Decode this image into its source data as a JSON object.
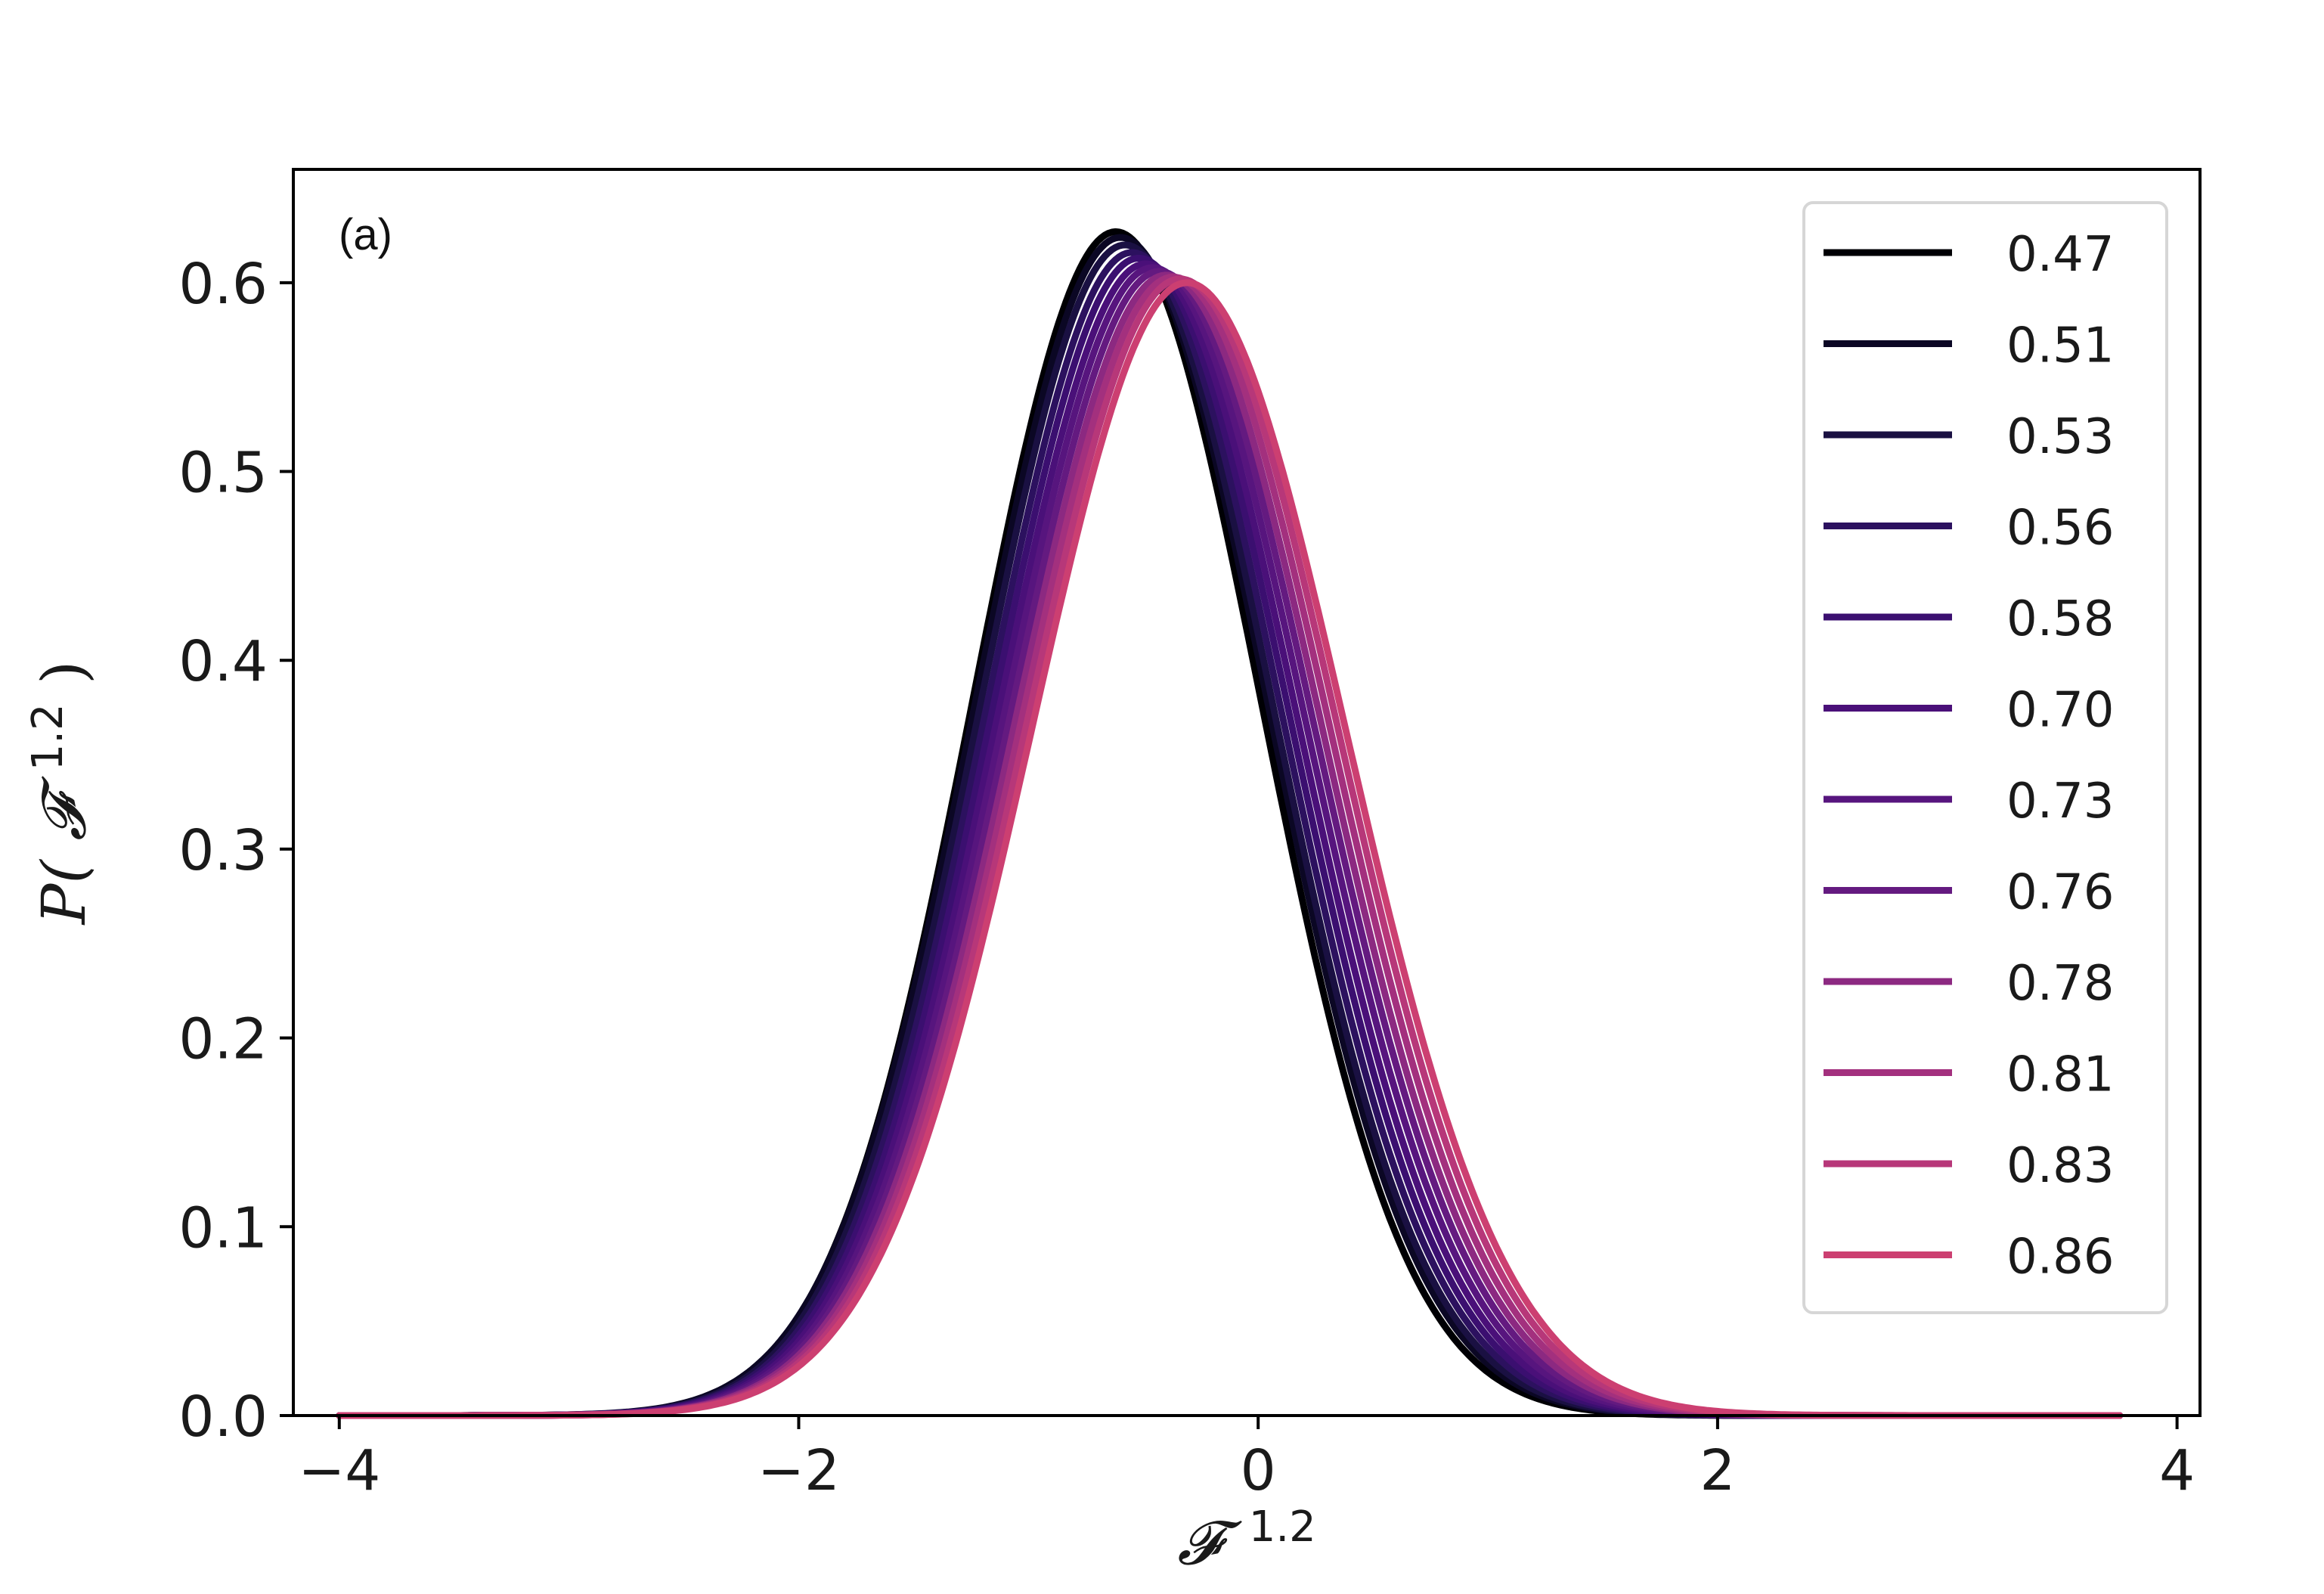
{
  "chart_data": {
    "type": "line",
    "panel_label": "(a)",
    "xlabel": {
      "symbol": "𝓕",
      "sup": "1.2"
    },
    "ylabel": {
      "prefix": "P(",
      "symbol": "𝓕",
      "sup": "1.2",
      "suffix": ")"
    },
    "xlim": [
      -4.2,
      4.1
    ],
    "ylim": [
      0.0,
      0.66
    ],
    "x_ticks": [
      -4,
      -2,
      0,
      2,
      4
    ],
    "x_tick_labels": [
      "−4",
      "−2",
      "0",
      "2",
      "4"
    ],
    "y_ticks": [
      0.0,
      0.1,
      0.2,
      0.3,
      0.4,
      0.5,
      0.6
    ],
    "y_tick_labels": [
      "0.0",
      "0.1",
      "0.2",
      "0.3",
      "0.4",
      "0.5",
      "0.6"
    ],
    "grid": false,
    "legend_position": "top-right",
    "x_range_plotted": [
      -4.0,
      3.75
    ],
    "series": [
      {
        "name": "0.47",
        "color": "#000004",
        "peak_x": -0.62,
        "peak_y": 0.627,
        "sigma_left": 0.62,
        "sigma_right": 0.63
      },
      {
        "name": "0.51",
        "color": "#0b0724",
        "peak_x": -0.6,
        "peak_y": 0.624,
        "sigma_left": 0.63,
        "sigma_right": 0.64
      },
      {
        "name": "0.53",
        "color": "#1a1042",
        "peak_x": -0.58,
        "peak_y": 0.62,
        "sigma_left": 0.63,
        "sigma_right": 0.645
      },
      {
        "name": "0.56",
        "color": "#2c115f",
        "peak_x": -0.55,
        "peak_y": 0.616,
        "sigma_left": 0.635,
        "sigma_right": 0.65
      },
      {
        "name": "0.58",
        "color": "#3b0f70",
        "peak_x": -0.52,
        "peak_y": 0.613,
        "sigma_left": 0.64,
        "sigma_right": 0.655
      },
      {
        "name": "0.70",
        "color": "#4a1079",
        "peak_x": -0.49,
        "peak_y": 0.61,
        "sigma_left": 0.645,
        "sigma_right": 0.66
      },
      {
        "name": "0.73",
        "color": "#57157e",
        "peak_x": -0.46,
        "peak_y": 0.608,
        "sigma_left": 0.65,
        "sigma_right": 0.665
      },
      {
        "name": "0.76",
        "color": "#641a80",
        "peak_x": -0.43,
        "peak_y": 0.606,
        "sigma_left": 0.655,
        "sigma_right": 0.67
      },
      {
        "name": "0.78",
        "color": "#8c2981",
        "peak_x": -0.4,
        "peak_y": 0.604,
        "sigma_left": 0.66,
        "sigma_right": 0.675
      },
      {
        "name": "0.81",
        "color": "#a3307e",
        "peak_x": -0.37,
        "peak_y": 0.603,
        "sigma_left": 0.665,
        "sigma_right": 0.68
      },
      {
        "name": "0.83",
        "color": "#b73779",
        "peak_x": -0.34,
        "peak_y": 0.602,
        "sigma_left": 0.67,
        "sigma_right": 0.685
      },
      {
        "name": "0.86",
        "color": "#cc3f71",
        "peak_x": -0.31,
        "peak_y": 0.6,
        "sigma_left": 0.675,
        "sigma_right": 0.69
      }
    ]
  }
}
